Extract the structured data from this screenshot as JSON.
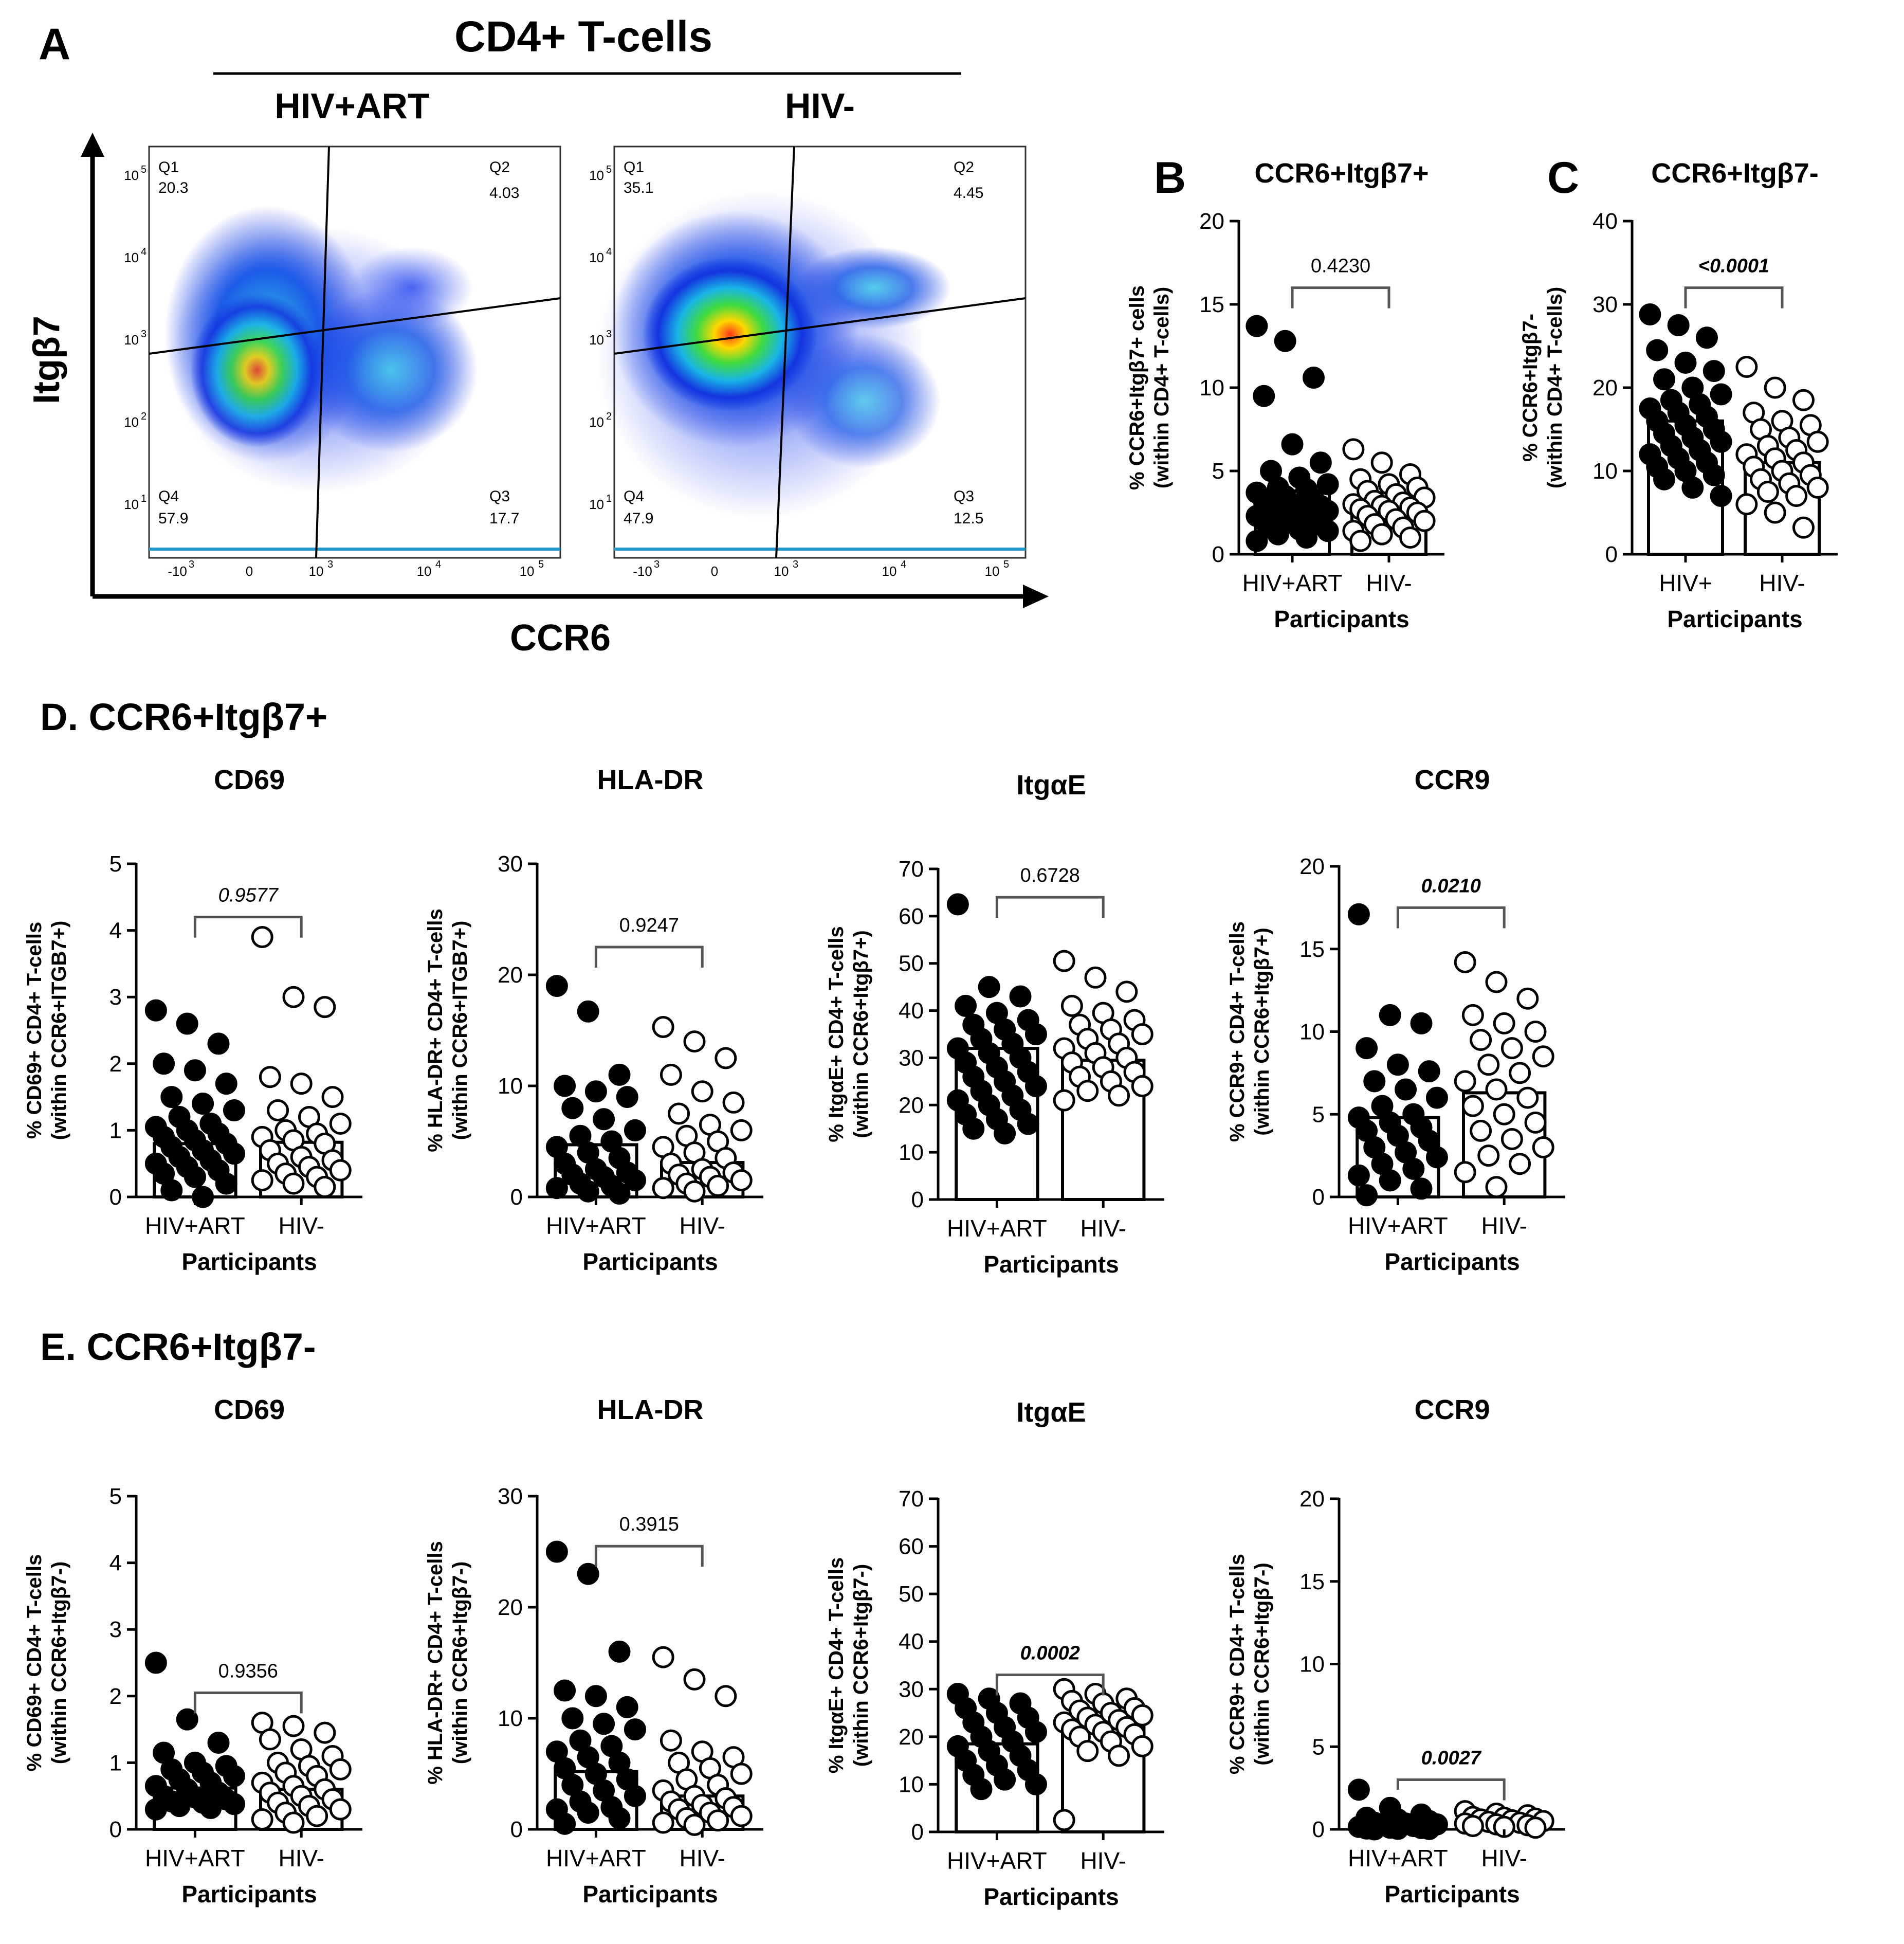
{
  "figure": {
    "panel_a": {
      "letter": "A",
      "main_title": "CD4+ T-cells",
      "x_axis_label": "CCR6",
      "y_axis_label": "Itgβ7",
      "plots": [
        {
          "title": "HIV+ART",
          "quadrants": {
            "q1": {
              "label": "Q1",
              "value": "20.3"
            },
            "q2": {
              "label": "Q2",
              "value": "4.03"
            },
            "q3": {
              "label": "Q3",
              "value": "17.7"
            },
            "q4": {
              "label": "Q4",
              "value": "57.9"
            }
          }
        },
        {
          "title": "HIV-",
          "quadrants": {
            "q1": {
              "label": "Q1",
              "value": "35.1"
            },
            "q2": {
              "label": "Q2",
              "value": "4.45"
            },
            "q3": {
              "label": "Q3",
              "value": "12.5"
            },
            "q4": {
              "label": "Q4",
              "value": "47.9"
            }
          }
        }
      ],
      "y_ticks": [
        "10",
        "10",
        "10",
        "10",
        "10"
      ],
      "y_tick_exps": [
        "5",
        "4",
        "3",
        "2",
        "1"
      ],
      "x_ticks": [
        "-10",
        "0",
        "10",
        "10",
        "10"
      ],
      "x_tick_exps": [
        "3",
        "",
        "3",
        "4",
        "5"
      ]
    },
    "section_d_title": "D. CCR6+Itgβ7+",
    "section_e_title": "E. CCR6+Itgβ7-"
  },
  "chart_data": [
    {
      "id": "B",
      "type": "bar",
      "title": "CCR6+Itgβ7+",
      "ylabel_line1": "% CCR6+Itgβ7+ cells",
      "ylabel_line2": "(within CD4+ T-cells)",
      "xlabel": "Participants",
      "categories": [
        "HIV+ART",
        "HIV-"
      ],
      "values": [
        3.8,
        3.0
      ],
      "ylim": [
        0,
        20
      ],
      "yticks": [
        0,
        5,
        10,
        15,
        20
      ],
      "pvalue": "0.4230",
      "p_style": "normal",
      "points": [
        [
          13.7,
          12.8,
          10.6,
          9.5,
          6.6,
          5.5,
          5.0,
          4.6,
          4.2,
          4.0,
          3.9,
          3.7,
          3.5,
          3.3,
          3.2,
          3.0,
          2.9,
          2.8,
          2.7,
          2.6,
          2.5,
          2.4,
          2.3,
          2.2,
          2.1,
          2.0,
          1.9,
          1.8,
          1.6,
          1.5,
          1.4,
          1.2,
          1.0,
          0.8
        ],
        [
          6.3,
          5.5,
          4.8,
          4.5,
          4.2,
          4.0,
          3.8,
          3.6,
          3.4,
          3.2,
          3.1,
          3.0,
          2.9,
          2.8,
          2.7,
          2.6,
          2.5,
          2.3,
          2.1,
          2.0,
          1.8,
          1.6,
          1.4,
          1.2,
          1.0,
          0.8
        ]
      ]
    },
    {
      "id": "C",
      "type": "bar",
      "title": "CCR6+Itgβ7-",
      "ylabel_line1": "% CCR6+Itgβ7-",
      "ylabel_line2": "(within CD4+ T-cells)",
      "xlabel": "Participants",
      "categories": [
        "HIV+",
        "HIV-"
      ],
      "values": [
        16.0,
        11.0
      ],
      "ylim": [
        0,
        40
      ],
      "yticks": [
        0,
        10,
        20,
        30,
        40
      ],
      "pvalue": "<0.0001",
      "p_style": "sig",
      "points": [
        [
          28.8,
          27.5,
          26.0,
          24.5,
          23.0,
          22.0,
          21.0,
          20.0,
          19.2,
          18.5,
          18.0,
          17.5,
          17.0,
          16.5,
          16.0,
          15.5,
          15.0,
          14.5,
          14.0,
          13.5,
          13.0,
          12.5,
          12.0,
          11.5,
          11.0,
          10.5,
          10.0,
          9.5,
          9.0,
          8.0,
          7.0
        ],
        [
          22.5,
          20.0,
          18.5,
          17.0,
          16.0,
          15.5,
          15.0,
          14.0,
          13.5,
          13.0,
          12.5,
          12.0,
          11.5,
          11.0,
          10.5,
          10.0,
          9.5,
          9.0,
          8.5,
          8.0,
          7.5,
          7.0,
          6.0,
          5.0,
          3.2
        ]
      ]
    },
    {
      "id": "D-CD69",
      "type": "bar",
      "title": "CD69",
      "ylabel_line1": "% CD69+ CD4+ T-cells",
      "ylabel_line2": "(within CCR6+ITGB7+)",
      "xlabel": "Participants",
      "categories": [
        "HIV+ART",
        "HIV-"
      ],
      "values": [
        0.8,
        0.82
      ],
      "ylim": [
        0,
        5
      ],
      "yticks": [
        0,
        1,
        2,
        3,
        4,
        5
      ],
      "pvalue": "0.9577",
      "p_style": "italic",
      "points": [
        [
          2.8,
          2.6,
          2.3,
          2.0,
          1.9,
          1.7,
          1.5,
          1.4,
          1.3,
          1.2,
          1.1,
          1.05,
          1.0,
          0.95,
          0.9,
          0.85,
          0.8,
          0.75,
          0.7,
          0.65,
          0.6,
          0.55,
          0.5,
          0.45,
          0.4,
          0.35,
          0.3,
          0.2,
          0.1,
          0.0
        ],
        [
          3.9,
          3.0,
          2.85,
          1.8,
          1.7,
          1.5,
          1.3,
          1.2,
          1.1,
          1.0,
          0.95,
          0.9,
          0.85,
          0.8,
          0.7,
          0.6,
          0.55,
          0.5,
          0.45,
          0.4,
          0.35,
          0.3,
          0.25,
          0.2,
          0.15
        ]
      ]
    },
    {
      "id": "D-HLADR",
      "type": "bar",
      "title": "HLA-DR",
      "ylabel_line1": "% HLA-DR+ CD4+ T-cells",
      "ylabel_line2": "(within CCR6+ITGB7+)",
      "xlabel": "Participants",
      "categories": [
        "HIV+ART",
        "HIV-"
      ],
      "values": [
        4.7,
        3.1
      ],
      "ylim": [
        0,
        30
      ],
      "yticks": [
        0,
        10,
        20,
        30
      ],
      "pvalue": "0.9247",
      "p_style": "normal",
      "points": [
        [
          19.0,
          16.7,
          11.0,
          10.0,
          9.5,
          9.0,
          8.0,
          7.0,
          6.0,
          5.5,
          5.0,
          4.5,
          4.0,
          3.5,
          3.0,
          2.5,
          2.2,
          2.0,
          1.8,
          1.5,
          1.2,
          1.0,
          0.8,
          0.5,
          0.3
        ],
        [
          15.3,
          14.0,
          12.5,
          11.0,
          9.5,
          8.5,
          7.5,
          6.5,
          6.0,
          5.5,
          5.0,
          4.5,
          4.0,
          3.5,
          3.0,
          2.5,
          2.2,
          2.0,
          1.8,
          1.5,
          1.2,
          1.0,
          0.8,
          0.5
        ]
      ]
    },
    {
      "id": "D-ItgaE",
      "type": "bar",
      "title": "ItgαE",
      "ylabel_line1": "% ItgαE+ CD4+ T-cells",
      "ylabel_line2": "(within CCR6+Itgβ7+)",
      "xlabel": "Participants",
      "categories": [
        "HIV+ART",
        "HIV-"
      ],
      "values": [
        32.0,
        29.5
      ],
      "ylim": [
        0,
        70
      ],
      "yticks": [
        0,
        10,
        20,
        30,
        40,
        50,
        60,
        70
      ],
      "pvalue": "0.6728",
      "p_style": "normal",
      "points": [
        [
          62.5,
          45.0,
          43.0,
          41.0,
          39.5,
          38.0,
          37.0,
          36.0,
          35.0,
          34.0,
          33.0,
          32.0,
          31.0,
          30.0,
          29.0,
          28.0,
          27.0,
          26.0,
          25.0,
          24.0,
          23.0,
          22.0,
          21.0,
          20.0,
          19.0,
          18.0,
          17.0,
          16.0,
          15.0,
          14.0
        ],
        [
          50.5,
          47.0,
          44.0,
          41.0,
          39.5,
          38.0,
          37.0,
          36.0,
          35.0,
          34.0,
          33.0,
          32.0,
          31.0,
          30.0,
          29.0,
          28.0,
          27.0,
          26.0,
          25.0,
          24.0,
          23.0,
          22.0,
          21.0
        ]
      ]
    },
    {
      "id": "D-CCR9",
      "type": "bar",
      "title": "CCR9",
      "ylabel_line1": "% CCR9+ CD4+ T-cells",
      "ylabel_line2": "(within CCR6+Itgβ7+)",
      "xlabel": "Participants",
      "categories": [
        "HIV+ART",
        "HIV-"
      ],
      "values": [
        4.8,
        6.3
      ],
      "ylim": [
        0,
        20
      ],
      "yticks": [
        0,
        5,
        10,
        15,
        20
      ],
      "pvalue": "0.0210",
      "p_style": "sig",
      "points": [
        [
          17.1,
          11.0,
          10.5,
          9.0,
          8.0,
          7.6,
          7.0,
          6.5,
          6.0,
          5.5,
          5.0,
          4.8,
          4.5,
          4.2,
          4.0,
          3.7,
          3.4,
          3.0,
          2.7,
          2.4,
          2.0,
          1.7,
          1.3,
          1.0,
          0.5,
          0.1
        ],
        [
          14.2,
          13.0,
          12.0,
          11.0,
          10.5,
          10.0,
          9.5,
          9.0,
          8.5,
          8.0,
          7.5,
          7.0,
          6.5,
          6.0,
          5.5,
          5.0,
          4.5,
          4.0,
          3.5,
          3.0,
          2.5,
          2.0,
          1.5,
          0.6
        ]
      ]
    },
    {
      "id": "E-CD69",
      "type": "bar",
      "title": "CD69",
      "ylabel_line1": "% CD69+ CD4+ T-cells",
      "ylabel_line2": "(within CCR6+Itgβ7-)",
      "xlabel": "Participants",
      "categories": [
        "HIV+ART",
        "HIV-"
      ],
      "values": [
        0.62,
        0.6
      ],
      "ylim": [
        0,
        5
      ],
      "yticks": [
        0,
        1,
        2,
        3,
        4,
        5
      ],
      "pvalue": "0.9356",
      "p_style": "normal",
      "points": [
        [
          2.5,
          1.65,
          1.3,
          1.15,
          1.0,
          0.95,
          0.9,
          0.85,
          0.8,
          0.75,
          0.7,
          0.65,
          0.6,
          0.55,
          0.5,
          0.48,
          0.45,
          0.42,
          0.4,
          0.38,
          0.35,
          0.32,
          0.3
        ],
        [
          1.6,
          1.55,
          1.45,
          1.35,
          1.2,
          1.1,
          1.0,
          0.95,
          0.9,
          0.85,
          0.8,
          0.7,
          0.65,
          0.6,
          0.55,
          0.5,
          0.45,
          0.4,
          0.35,
          0.3,
          0.25,
          0.2,
          0.15,
          0.1
        ]
      ]
    },
    {
      "id": "E-HLADR",
      "type": "bar",
      "title": "HLA-DR",
      "ylabel_line1": "% HLA-DR+ CD4+ T-cells",
      "ylabel_line2": "(within CCR6+Itgβ7-)",
      "xlabel": "Participants",
      "categories": [
        "HIV+ART",
        "HIV-"
      ],
      "values": [
        5.2,
        3.0
      ],
      "ylim": [
        0,
        30
      ],
      "yticks": [
        0,
        10,
        20,
        30
      ],
      "pvalue": "0.3915",
      "p_style": "normal",
      "points": [
        [
          25.0,
          23.0,
          16.0,
          12.5,
          12.0,
          11.0,
          10.0,
          9.5,
          9.0,
          8.0,
          7.5,
          7.0,
          6.5,
          6.0,
          5.5,
          5.0,
          4.5,
          4.0,
          3.5,
          3.0,
          2.5,
          2.0,
          1.8,
          1.5,
          1.0,
          0.5
        ],
        [
          15.5,
          13.5,
          12.0,
          8.0,
          7.0,
          6.5,
          6.0,
          5.5,
          5.0,
          4.5,
          4.0,
          3.5,
          3.0,
          2.8,
          2.5,
          2.2,
          2.0,
          1.8,
          1.5,
          1.2,
          1.0,
          0.8,
          0.6,
          0.4
        ]
      ]
    },
    {
      "id": "E-ItgaE",
      "type": "bar",
      "title": "ItgαE",
      "ylabel_line1": "% ItgαE+ CD4+ T-cells",
      "ylabel_line2": "(within CCR6+Itgβ7-)",
      "xlabel": "Participants",
      "categories": [
        "HIV+ART",
        "HIV-"
      ],
      "values": [
        18.5,
        23.0
      ],
      "ylim": [
        0,
        70
      ],
      "yticks": [
        0,
        10,
        20,
        30,
        40,
        50,
        60,
        70
      ],
      "pvalue": "0.0002",
      "p_style": "sig",
      "points": [
        [
          29.0,
          28.0,
          27.0,
          26.0,
          25.0,
          24.0,
          23.0,
          22.0,
          21.0,
          20.0,
          19.0,
          18.0,
          17.0,
          16.0,
          15.0,
          14.0,
          13.0,
          12.0,
          11.0,
          10.0,
          9.0
        ],
        [
          30.0,
          29.0,
          28.0,
          27.5,
          27.0,
          26.0,
          25.5,
          25.0,
          24.5,
          24.0,
          23.5,
          23.0,
          22.5,
          22.0,
          21.5,
          21.0,
          20.5,
          20.0,
          19.0,
          18.0,
          17.0,
          16.0,
          2.5
        ]
      ]
    },
    {
      "id": "E-CCR9",
      "type": "bar",
      "title": "CCR9",
      "ylabel_line1": "% CCR9+ CD4+ T-cells",
      "ylabel_line2": "(within CCR6+Itgβ7-)",
      "xlabel": "Participants",
      "categories": [
        "HIV+ART",
        "HIV-"
      ],
      "values": [
        0.3,
        0.45
      ],
      "ylim": [
        0,
        20
      ],
      "yticks": [
        0,
        5,
        10,
        15,
        20
      ],
      "pvalue": "0.0027",
      "p_style": "sig",
      "points": [
        [
          2.4,
          1.3,
          0.9,
          0.7,
          0.6,
          0.5,
          0.4,
          0.35,
          0.3,
          0.25,
          0.2,
          0.15,
          0.1,
          0.08,
          0.05,
          0.03,
          0.02,
          0.0
        ],
        [
          1.1,
          0.95,
          0.85,
          0.75,
          0.7,
          0.65,
          0.6,
          0.55,
          0.5,
          0.45,
          0.4,
          0.35,
          0.3,
          0.25,
          0.2,
          0.15,
          0.1
        ]
      ]
    }
  ]
}
